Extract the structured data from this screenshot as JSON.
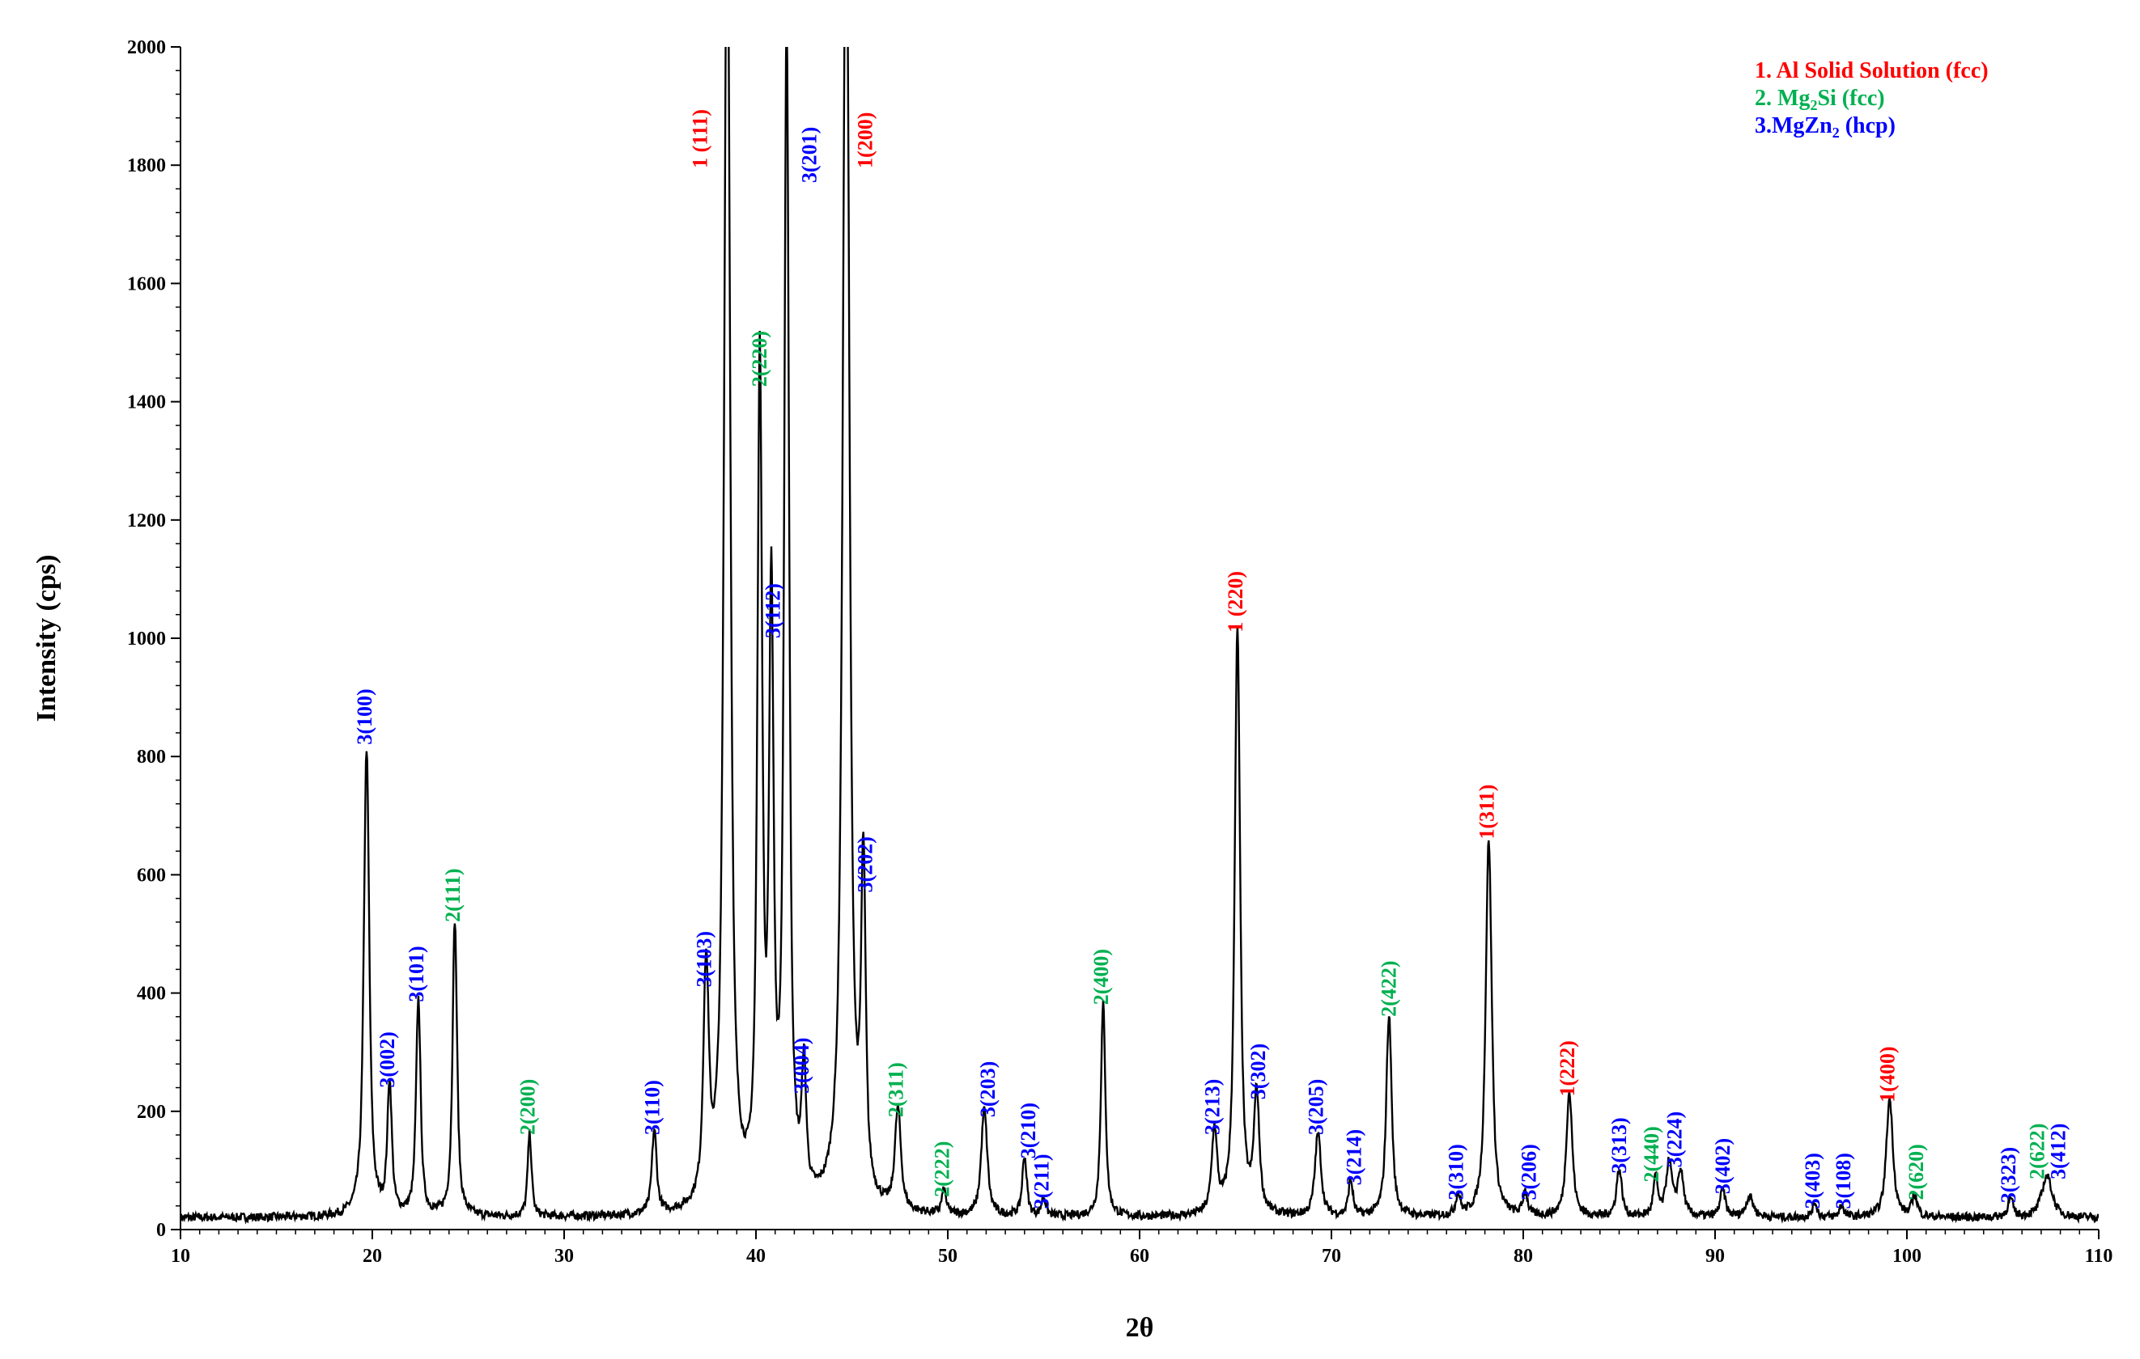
{
  "chart_data": {
    "type": "line",
    "title": "",
    "xlabel": "2θ",
    "ylabel": "Intensity (cps)",
    "xlim": [
      10,
      110
    ],
    "ylim": [
      0,
      2000
    ],
    "x_ticks": [
      10,
      20,
      30,
      40,
      50,
      60,
      70,
      80,
      90,
      100,
      110
    ],
    "y_ticks": [
      0,
      200,
      400,
      600,
      800,
      1000,
      1200,
      1400,
      1600,
      1800,
      2000
    ],
    "x_tick_labels": [
      "10",
      "20",
      "30",
      "40",
      "50",
      "60",
      "70",
      "80",
      "90",
      "100",
      "110"
    ],
    "y_tick_labels": [
      "0",
      "200",
      "400",
      "600",
      "800",
      "1000",
      "1200",
      "1400",
      "1600",
      "1800",
      "2000"
    ],
    "grid": false,
    "background_level": 20,
    "series_color": "#000000",
    "peaks": [
      {
        "x": 19.7,
        "y": 790,
        "w": 0.18
      },
      {
        "x": 20.9,
        "y": 220,
        "w": 0.15
      },
      {
        "x": 22.4,
        "y": 365,
        "w": 0.15
      },
      {
        "x": 24.3,
        "y": 500,
        "w": 0.15
      },
      {
        "x": 28.2,
        "y": 140,
        "w": 0.13
      },
      {
        "x": 34.7,
        "y": 140,
        "w": 0.16
      },
      {
        "x": 37.4,
        "y": 390,
        "w": 0.18
      },
      {
        "x": 38.5,
        "y": 2300,
        "w": 0.2
      },
      {
        "x": 40.2,
        "y": 1400,
        "w": 0.16
      },
      {
        "x": 40.8,
        "y": 990,
        "w": 0.15
      },
      {
        "x": 41.6,
        "y": 1980,
        "w": 0.16
      },
      {
        "x": 42.5,
        "y": 210,
        "w": 0.15
      },
      {
        "x": 44.7,
        "y": 2300,
        "w": 0.22
      },
      {
        "x": 45.6,
        "y": 550,
        "w": 0.15
      },
      {
        "x": 47.4,
        "y": 170,
        "w": 0.2
      },
      {
        "x": 49.8,
        "y": 40,
        "w": 0.15
      },
      {
        "x": 51.9,
        "y": 180,
        "w": 0.2
      },
      {
        "x": 54.0,
        "y": 100,
        "w": 0.15
      },
      {
        "x": 55.0,
        "y": 30,
        "w": 0.15
      },
      {
        "x": 58.1,
        "y": 360,
        "w": 0.15
      },
      {
        "x": 63.9,
        "y": 140,
        "w": 0.18
      },
      {
        "x": 65.1,
        "y": 990,
        "w": 0.18
      },
      {
        "x": 66.1,
        "y": 200,
        "w": 0.18
      },
      {
        "x": 69.3,
        "y": 140,
        "w": 0.2
      },
      {
        "x": 71.0,
        "y": 60,
        "w": 0.15
      },
      {
        "x": 73.0,
        "y": 340,
        "w": 0.18
      },
      {
        "x": 76.6,
        "y": 35,
        "w": 0.15
      },
      {
        "x": 78.2,
        "y": 640,
        "w": 0.2
      },
      {
        "x": 80.1,
        "y": 40,
        "w": 0.15
      },
      {
        "x": 82.4,
        "y": 210,
        "w": 0.2
      },
      {
        "x": 85.0,
        "y": 80,
        "w": 0.18
      },
      {
        "x": 86.9,
        "y": 65,
        "w": 0.15
      },
      {
        "x": 87.6,
        "y": 90,
        "w": 0.2
      },
      {
        "x": 88.2,
        "y": 75,
        "w": 0.2
      },
      {
        "x": 90.4,
        "y": 45,
        "w": 0.18
      },
      {
        "x": 91.8,
        "y": 35,
        "w": 0.25
      },
      {
        "x": 95.2,
        "y": 25,
        "w": 0.15
      },
      {
        "x": 96.6,
        "y": 20,
        "w": 0.15
      },
      {
        "x": 99.1,
        "y": 200,
        "w": 0.22
      },
      {
        "x": 100.4,
        "y": 35,
        "w": 0.18
      },
      {
        "x": 105.4,
        "y": 30,
        "w": 0.18
      },
      {
        "x": 107.3,
        "y": 70,
        "w": 0.35
      }
    ],
    "peak_labels": [
      {
        "text": "3(100)",
        "x": 19.7,
        "y": 820,
        "phase": 3
      },
      {
        "text": "3(002)",
        "x": 20.9,
        "y": 240,
        "phase": 3
      },
      {
        "text": "3(101)",
        "x": 22.4,
        "y": 385,
        "phase": 3
      },
      {
        "text": "2(111)",
        "x": 24.3,
        "y": 520,
        "phase": 2
      },
      {
        "text": "2(200)",
        "x": 28.2,
        "y": 160,
        "phase": 2
      },
      {
        "text": "3(110)",
        "x": 34.7,
        "y": 160,
        "phase": 3
      },
      {
        "text": "3(103)",
        "x": 37.4,
        "y": 410,
        "phase": 3
      },
      {
        "text": "1 (111)",
        "x": 37.2,
        "y": 1795,
        "phase": 1
      },
      {
        "text": "2(220)",
        "x": 40.3,
        "y": 1425,
        "phase": 2
      },
      {
        "text": "3(112)",
        "x": 41.0,
        "y": 1000,
        "phase": 3
      },
      {
        "text": "3(201)",
        "x": 42.9,
        "y": 1770,
        "phase": 3
      },
      {
        "text": "3(004)",
        "x": 42.5,
        "y": 230,
        "phase": 3
      },
      {
        "text": "1(200)",
        "x": 45.8,
        "y": 1795,
        "phase": 1
      },
      {
        "text": "3(202)",
        "x": 45.8,
        "y": 570,
        "phase": 3
      },
      {
        "text": "2(311)",
        "x": 47.4,
        "y": 190,
        "phase": 2
      },
      {
        "text": "2(222)",
        "x": 49.8,
        "y": 55,
        "phase": 2
      },
      {
        "text": "3(203)",
        "x": 52.2,
        "y": 190,
        "phase": 3
      },
      {
        "text": "3(210)",
        "x": 54.3,
        "y": 120,
        "phase": 3
      },
      {
        "text": "3(211)",
        "x": 55.0,
        "y": 35,
        "phase": 3
      },
      {
        "text": "2(400)",
        "x": 58.1,
        "y": 380,
        "phase": 2
      },
      {
        "text": "3(213)",
        "x": 63.9,
        "y": 160,
        "phase": 3
      },
      {
        "text": "1 (220)",
        "x": 65.1,
        "y": 1010,
        "phase": 1
      },
      {
        "text": "3(302)",
        "x": 66.3,
        "y": 220,
        "phase": 3
      },
      {
        "text": "3(205)",
        "x": 69.3,
        "y": 160,
        "phase": 3
      },
      {
        "text": "3(214)",
        "x": 71.3,
        "y": 75,
        "phase": 3
      },
      {
        "text": "2(422)",
        "x": 73.1,
        "y": 360,
        "phase": 2
      },
      {
        "text": "3(310)",
        "x": 76.6,
        "y": 50,
        "phase": 3
      },
      {
        "text": "1(311)",
        "x": 78.2,
        "y": 660,
        "phase": 1
      },
      {
        "text": "3(206)",
        "x": 80.4,
        "y": 50,
        "phase": 3
      },
      {
        "text": "1(222)",
        "x": 82.4,
        "y": 225,
        "phase": 1
      },
      {
        "text": "3(313)",
        "x": 85.1,
        "y": 95,
        "phase": 3
      },
      {
        "text": "2(440)",
        "x": 86.8,
        "y": 80,
        "phase": 2
      },
      {
        "text": "3(224)",
        "x": 88.0,
        "y": 105,
        "phase": 3
      },
      {
        "text": "3(402)",
        "x": 90.5,
        "y": 60,
        "phase": 3
      },
      {
        "text": "3(403)",
        "x": 95.2,
        "y": 35,
        "phase": 3
      },
      {
        "text": "3(108)",
        "x": 96.8,
        "y": 35,
        "phase": 3
      },
      {
        "text": "1(400)",
        "x": 99.1,
        "y": 215,
        "phase": 1
      },
      {
        "text": "2(620)",
        "x": 100.6,
        "y": 50,
        "phase": 2
      },
      {
        "text": "3(323)",
        "x": 105.4,
        "y": 45,
        "phase": 3
      },
      {
        "text": "2(622)",
        "x": 106.9,
        "y": 85,
        "phase": 2
      },
      {
        "text": "3(412)",
        "x": 108.0,
        "y": 85,
        "phase": 3
      }
    ],
    "legend": {
      "placement": "top-right",
      "entries": [
        {
          "phase": 1,
          "text": "1. Al Solid Solution (fcc)"
        },
        {
          "phase": 2,
          "text": "2. Mg",
          "sub": "2",
          "tail": "Si (fcc)"
        },
        {
          "phase": 3,
          "text": "3.MgZn",
          "sub": "2",
          "tail": " (hcp)"
        }
      ]
    },
    "phase_colors": {
      "1": "#ff0000",
      "2": "#00b050",
      "3": "#0000ff"
    }
  }
}
